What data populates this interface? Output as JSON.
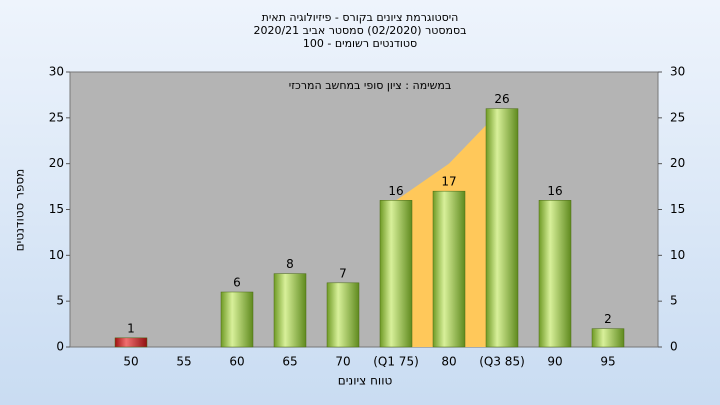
{
  "chart_data": {
    "type": "bar",
    "title": [
      "היסטוגרמת ציונים בקורס - פיזיולוגיה תאית",
      "בסמסטר  (02/2020)  סמסטר אביב 2020/21",
      "סטודנטים רשומים - 100"
    ],
    "annotation": "במשימה : ציון סופי במחשב המרכזי",
    "x_label": "טווח ציונים",
    "y_label": "מספר סטודנטים",
    "categories": [
      "50",
      "55",
      "60",
      "65",
      "70",
      "(Q1 75)",
      "80",
      "(Q3 85)",
      "90",
      "95"
    ],
    "series": [
      {
        "color": "#8fbf3a",
        "values": [
          1,
          null,
          6,
          8,
          7,
          16,
          17,
          26,
          16,
          2
        ],
        "value_colors": [
          "#d42020",
          null,
          "#8fbf3a",
          "#8fbf3a",
          "#8fbf3a",
          "#8fbf3a",
          "#8fbf3a",
          "#8fbf3a",
          "#8fbf3a",
          "#8fbf3a"
        ]
      }
    ],
    "area": {
      "color": "#ffc85a",
      "values": [
        null,
        null,
        null,
        null,
        null,
        16,
        20,
        26,
        null,
        null
      ]
    },
    "ylim": [
      0,
      30
    ],
    "yticks": [
      0,
      5,
      10,
      15,
      20,
      25,
      30
    ],
    "y2lim": [
      0,
      30
    ],
    "y2ticks": [
      0,
      5,
      10,
      15,
      20,
      25,
      30
    ],
    "grid": false
  }
}
